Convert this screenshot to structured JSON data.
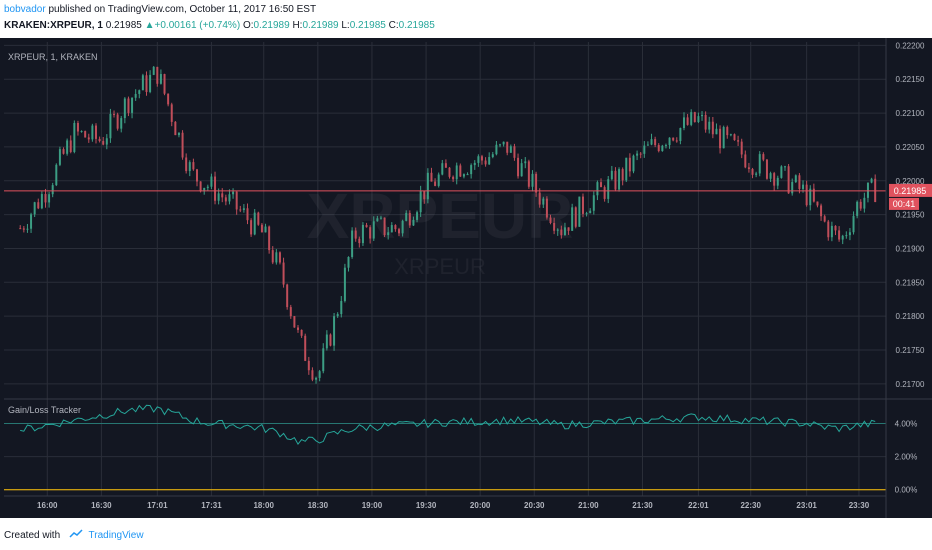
{
  "header": {
    "author": "bobvador",
    "published_text": "published on TradingView.com, October 11, 2017 16:50 EST",
    "symbol": "KRAKEN:XRPEUR, 1",
    "last": "0.21985",
    "change": "▲+0.00161 (+0.74%)",
    "o_label": "O:",
    "o_value": "0.21989",
    "h_label": "H:",
    "h_value": "0.21989",
    "l_label": "L:",
    "l_value": "0.21985",
    "c_label": "C:",
    "c_value": "0.21985"
  },
  "price_pane": {
    "legend": "XRPEUR, 1, KRAKEN",
    "watermark_big": "XRPEUR",
    "watermark_small": "XRPEUR",
    "last_price_label": "0.21985",
    "countdown_label": "00:41"
  },
  "indicator_pane": {
    "title": "Gain/Loss Tracker"
  },
  "footer": {
    "created_with": "Created with",
    "brand": "TradingView"
  },
  "colors": {
    "background": "#131722",
    "grid": "#2a2e39",
    "up": "#3c9e84",
    "down": "#c04e5a",
    "last_price_line": "#e0525e",
    "indicator_line": "#26a69a",
    "indicator_zero_line": "#ffc107",
    "axis_text": "#b2b5be"
  },
  "chart_data": [
    {
      "type": "candlestick",
      "title": "XRPEUR, 1, KRAKEN",
      "ylim": [
        0.21685,
        0.22205
      ],
      "y_ticks": [
        "0.22200",
        "0.22150",
        "0.22100",
        "0.22050",
        "0.22000",
        "0.21950",
        "0.21900",
        "0.21850",
        "0.21800",
        "0.21750",
        "0.21700"
      ],
      "x_ticks": [
        "16:00",
        "16:30",
        "17:01",
        "17:31",
        "18:00",
        "18:30",
        "19:00",
        "19:30",
        "20:00",
        "20:30",
        "21:00",
        "21:30",
        "22:01",
        "22:30",
        "23:01",
        "23:30"
      ],
      "last_price": 0.21985,
      "series": [
        {
          "time": "15:45",
          "price": 0.2193
        },
        {
          "time": "16:00",
          "price": 0.2199
        },
        {
          "time": "16:15",
          "price": 0.2207
        },
        {
          "time": "16:30",
          "price": 0.2206
        },
        {
          "time": "16:45",
          "price": 0.2212
        },
        {
          "time": "17:01",
          "price": 0.2216
        },
        {
          "time": "17:10",
          "price": 0.2209
        },
        {
          "time": "17:20",
          "price": 0.2201
        },
        {
          "time": "17:31",
          "price": 0.2199
        },
        {
          "time": "17:45",
          "price": 0.2196
        },
        {
          "time": "18:00",
          "price": 0.2192
        },
        {
          "time": "18:10",
          "price": 0.2186
        },
        {
          "time": "18:20",
          "price": 0.2176
        },
        {
          "time": "18:30",
          "price": 0.2171
        },
        {
          "time": "18:40",
          "price": 0.218
        },
        {
          "time": "18:50",
          "price": 0.2192
        },
        {
          "time": "19:00",
          "price": 0.2193
        },
        {
          "time": "19:15",
          "price": 0.2193
        },
        {
          "time": "19:30",
          "price": 0.2199
        },
        {
          "time": "19:45",
          "price": 0.2202
        },
        {
          "time": "20:00",
          "price": 0.2203
        },
        {
          "time": "20:15",
          "price": 0.2205
        },
        {
          "time": "20:30",
          "price": 0.2199
        },
        {
          "time": "20:45",
          "price": 0.2193
        },
        {
          "time": "21:00",
          "price": 0.2197
        },
        {
          "time": "21:15",
          "price": 0.22
        },
        {
          "time": "21:30",
          "price": 0.2204
        },
        {
          "time": "21:45",
          "price": 0.2207
        },
        {
          "time": "22:01",
          "price": 0.2209
        },
        {
          "time": "22:15",
          "price": 0.2206
        },
        {
          "time": "22:30",
          "price": 0.2203
        },
        {
          "time": "22:45",
          "price": 0.2201
        },
        {
          "time": "23:01",
          "price": 0.2198
        },
        {
          "time": "23:10",
          "price": 0.2194
        },
        {
          "time": "23:20",
          "price": 0.2191
        },
        {
          "time": "23:30",
          "price": 0.2197
        },
        {
          "time": "23:40",
          "price": 0.2199
        }
      ]
    },
    {
      "type": "line",
      "title": "Gain/Loss Tracker",
      "y_ticks": [
        "4.00%",
        "2.00%",
        "0.00%"
      ],
      "ylim": [
        -0.2,
        5.3
      ],
      "zero_line": 0,
      "series": [
        {
          "time": "15:45",
          "value": 3.6
        },
        {
          "time": "16:00",
          "value": 3.9
        },
        {
          "time": "16:15",
          "value": 4.2
        },
        {
          "time": "16:30",
          "value": 4.5
        },
        {
          "time": "16:45",
          "value": 4.8
        },
        {
          "time": "17:01",
          "value": 4.9
        },
        {
          "time": "17:10",
          "value": 4.6
        },
        {
          "time": "17:20",
          "value": 4.2
        },
        {
          "time": "17:31",
          "value": 4.0
        },
        {
          "time": "17:45",
          "value": 3.9
        },
        {
          "time": "18:00",
          "value": 3.7
        },
        {
          "time": "18:10",
          "value": 3.4
        },
        {
          "time": "18:20",
          "value": 2.9
        },
        {
          "time": "18:30",
          "value": 3.0
        },
        {
          "time": "18:40",
          "value": 3.4
        },
        {
          "time": "18:50",
          "value": 3.7
        },
        {
          "time": "19:00",
          "value": 3.8
        },
        {
          "time": "19:15",
          "value": 3.9
        },
        {
          "time": "19:30",
          "value": 4.0
        },
        {
          "time": "19:45",
          "value": 4.1
        },
        {
          "time": "20:00",
          "value": 4.1
        },
        {
          "time": "20:15",
          "value": 4.2
        },
        {
          "time": "20:30",
          "value": 4.1
        },
        {
          "time": "20:45",
          "value": 3.9
        },
        {
          "time": "21:00",
          "value": 4.0
        },
        {
          "time": "21:15",
          "value": 4.1
        },
        {
          "time": "21:30",
          "value": 4.2
        },
        {
          "time": "21:45",
          "value": 4.3
        },
        {
          "time": "22:01",
          "value": 4.4
        },
        {
          "time": "22:15",
          "value": 4.3
        },
        {
          "time": "22:30",
          "value": 4.2
        },
        {
          "time": "22:45",
          "value": 4.1
        },
        {
          "time": "23:01",
          "value": 4.0
        },
        {
          "time": "23:10",
          "value": 3.8
        },
        {
          "time": "23:20",
          "value": 3.7
        },
        {
          "time": "23:30",
          "value": 3.9
        },
        {
          "time": "23:40",
          "value": 4.0
        }
      ]
    }
  ]
}
